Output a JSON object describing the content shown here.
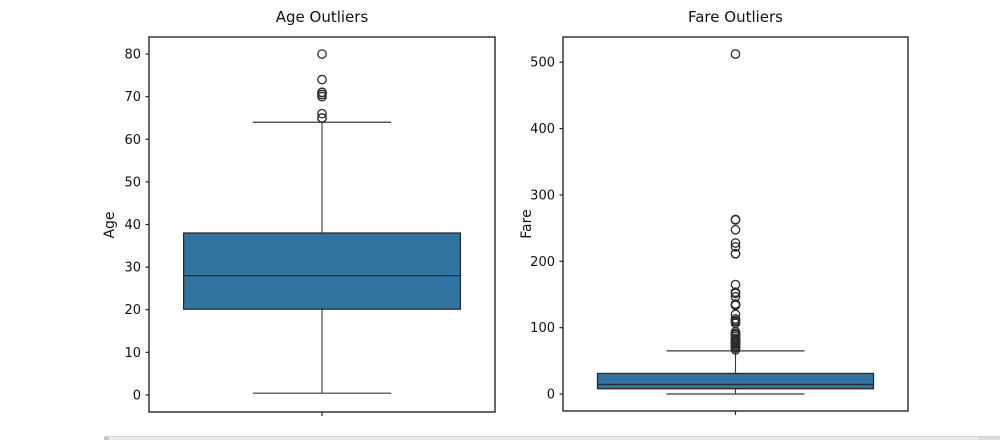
{
  "colors": {
    "background": "#ffffff",
    "box_fill": "#3274a1",
    "box_edge": "#2b2b2b",
    "whisker_line": "#3a3a3a",
    "outlier_stroke": "#2d2d2d",
    "spine": "#262626",
    "tick_text": "#111111",
    "scrollbar_track": "#ececec",
    "scrollbar_edge": "#d2d2d2"
  },
  "chart_data": [
    {
      "type": "box",
      "title": "Age Outliers",
      "ylabel": "Age",
      "xlabel": "",
      "ylim": [
        -4,
        84
      ],
      "yticks": [
        0,
        10,
        20,
        30,
        40,
        50,
        60,
        70,
        80
      ],
      "grid": false,
      "box": {
        "q1": 20.125,
        "median": 28,
        "q3": 38,
        "whisker_low": 0.42,
        "whisker_high": 64,
        "outliers": [
          65,
          65,
          66,
          70,
          70.5,
          71,
          71,
          74,
          80
        ]
      }
    },
    {
      "type": "box",
      "title": "Fare Outliers",
      "ylabel": "Fare",
      "xlabel": "",
      "ylim": [
        -25.6,
        538
      ],
      "yticks": [
        0,
        100,
        200,
        300,
        400,
        500
      ],
      "grid": false,
      "box": {
        "q1": 7.91,
        "median": 14.45,
        "q3": 31,
        "whisker_low": 0,
        "whisker_high": 65,
        "outliers": [
          512.33,
          263,
          262.38,
          247.52,
          227.53,
          221.78,
          211.5,
          211.34,
          164.87,
          153.46,
          151.55,
          146.52,
          135.63,
          134.5,
          133.65,
          120,
          113.28,
          110.88,
          108.9,
          106.43,
          93.5,
          91.08,
          90,
          89.1,
          86.5,
          83.48,
          83.16,
          82.17,
          81.86,
          80,
          79.65,
          79.2,
          78.85,
          78.27,
          77.96,
          77.29,
          76.73,
          76.29,
          75.25,
          73.5,
          71.28,
          71,
          69.55,
          69.3,
          66.6
        ]
      }
    }
  ]
}
